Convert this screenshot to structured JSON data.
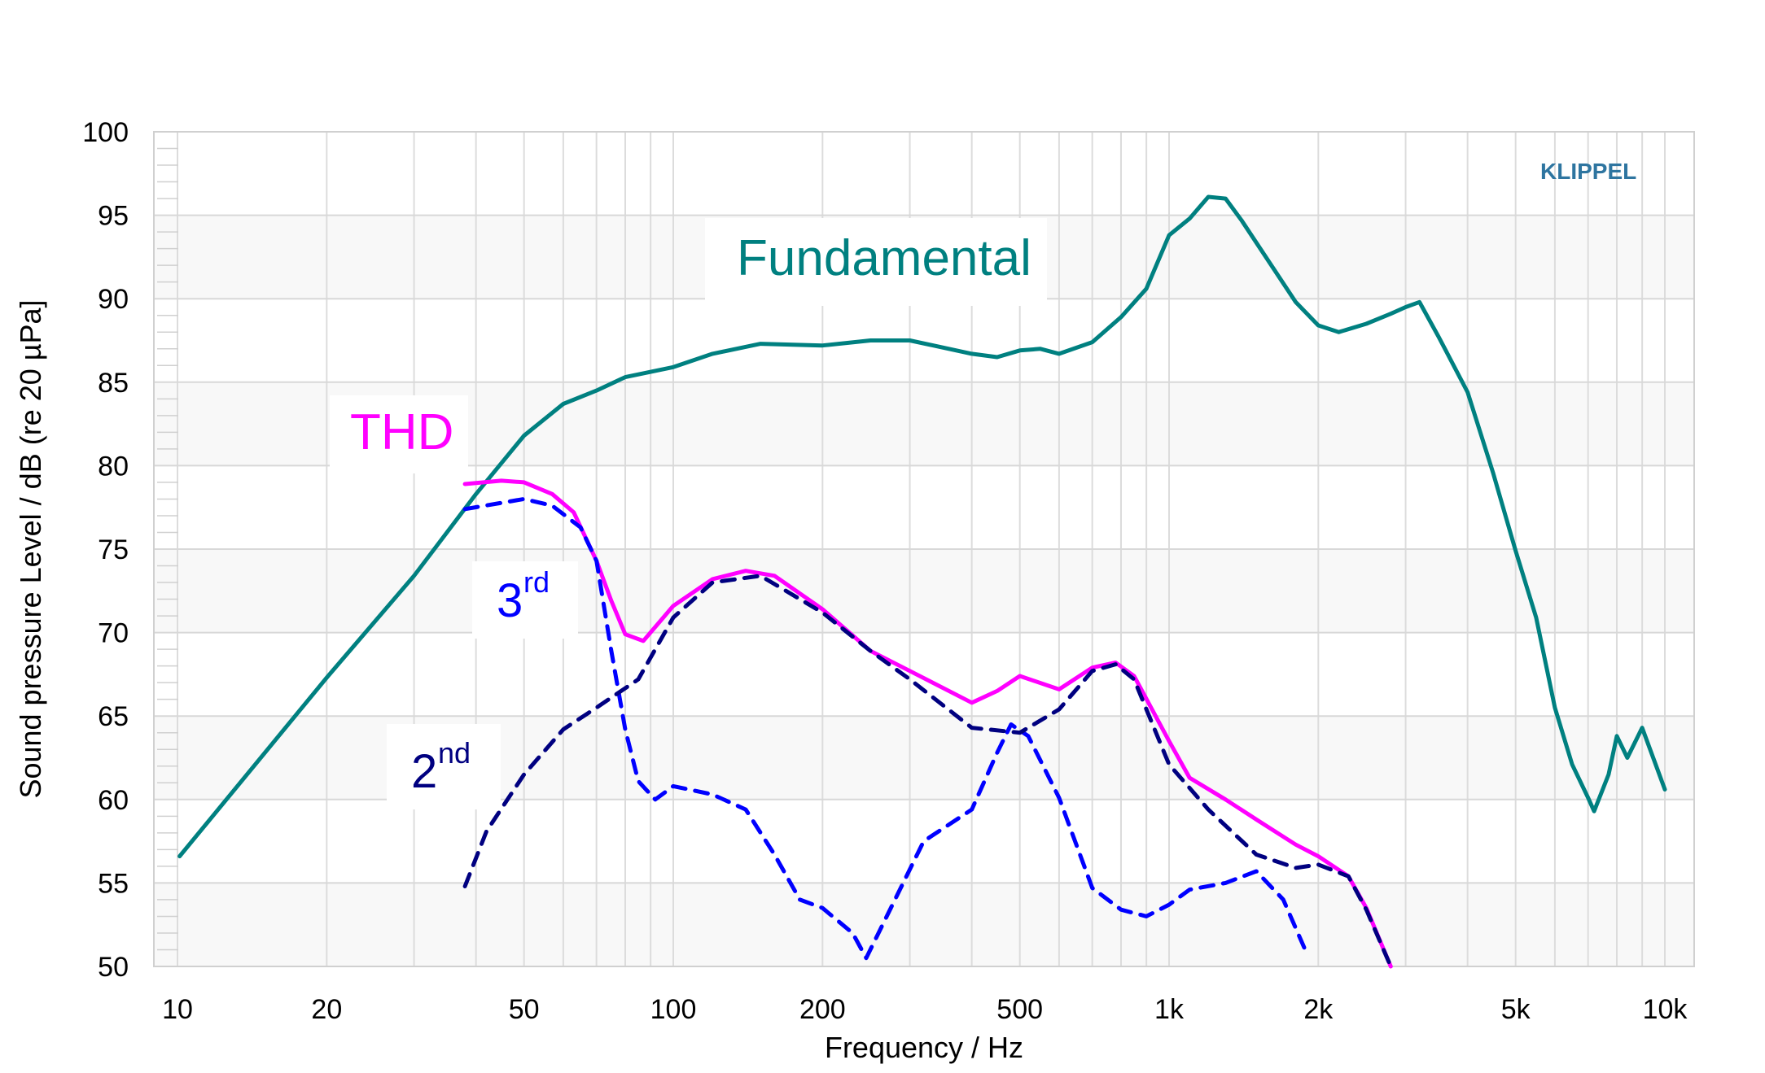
{
  "chart_data": {
    "type": "line",
    "title": "",
    "xlabel": "Frequency / Hz",
    "ylabel": "Sound pressure Level / dB (re 20 µPa]",
    "xscale": "log",
    "xlim": [
      10,
      10000
    ],
    "ylim": [
      50,
      100
    ],
    "grid": true,
    "xticks": [
      {
        "v": 10,
        "t": "10"
      },
      {
        "v": 20,
        "t": "20"
      },
      {
        "v": 50,
        "t": "50"
      },
      {
        "v": 100,
        "t": "100"
      },
      {
        "v": 200,
        "t": "200"
      },
      {
        "v": 500,
        "t": "500"
      },
      {
        "v": 1000,
        "t": "1k"
      },
      {
        "v": 2000,
        "t": "2k"
      },
      {
        "v": 5000,
        "t": "5k"
      },
      {
        "v": 10000,
        "t": "10k"
      }
    ],
    "yticks": [
      {
        "v": 100,
        "t": "100"
      },
      {
        "v": 95,
        "t": "95"
      },
      {
        "v": 90,
        "t": "90"
      },
      {
        "v": 85,
        "t": "85"
      },
      {
        "v": 80,
        "t": "80"
      },
      {
        "v": 75,
        "t": "75"
      },
      {
        "v": 70,
        "t": "70"
      },
      {
        "v": 65,
        "t": "65"
      },
      {
        "v": 60,
        "t": "60"
      },
      {
        "v": 55,
        "t": "55"
      },
      {
        "v": 50,
        "t": "50"
      }
    ],
    "watermark": "KLIPPEL",
    "series": [
      {
        "name": "Fundamental",
        "label": "Fundamental",
        "color": "#008080",
        "dash": false,
        "x": [
          10.1,
          20,
          30,
          40,
          50,
          60,
          70,
          80,
          100,
          120,
          150,
          200,
          250,
          300,
          400,
          450,
          500,
          550,
          600,
          700,
          800,
          900,
          1000,
          1100,
          1200,
          1300,
          1400,
          1600,
          1800,
          2000,
          2200,
          2500,
          2800,
          3000,
          3200,
          3500,
          4000,
          4500,
          5000,
          5500,
          6000,
          6500,
          7000,
          7200,
          7700,
          8000,
          8400,
          9000,
          10000
        ],
        "y": [
          56.6,
          67.3,
          73.4,
          78.3,
          81.8,
          83.7,
          84.5,
          85.3,
          85.9,
          86.7,
          87.3,
          87.2,
          87.5,
          87.5,
          86.7,
          86.5,
          86.9,
          87.0,
          86.7,
          87.4,
          88.9,
          90.6,
          93.8,
          94.8,
          96.1,
          96.0,
          94.7,
          92.1,
          89.8,
          88.4,
          88.0,
          88.5,
          89.1,
          89.5,
          89.8,
          87.7,
          84.4,
          79.6,
          74.9,
          70.9,
          65.5,
          62.1,
          60.1,
          59.3,
          61.5,
          63.8,
          62.5,
          64.3,
          60.6
        ]
      },
      {
        "name": "THD",
        "label": "THD",
        "color": "#ff00ff",
        "dash": false,
        "x": [
          38,
          45,
          50,
          57,
          63,
          70,
          75,
          80,
          87,
          100,
          120,
          140,
          160,
          200,
          250,
          300,
          400,
          450,
          500,
          600,
          700,
          780,
          850,
          1000,
          1100,
          1300,
          1500,
          1800,
          2000,
          2300,
          2500,
          2800
        ],
        "y": [
          78.9,
          79.1,
          79.0,
          78.3,
          77.2,
          74.3,
          71.9,
          69.9,
          69.5,
          71.6,
          73.2,
          73.7,
          73.4,
          71.4,
          68.9,
          67.7,
          65.8,
          66.5,
          67.4,
          66.6,
          67.9,
          68.2,
          67.4,
          63.5,
          61.3,
          60.0,
          58.8,
          57.3,
          56.6,
          55.4,
          53.5,
          50.0
        ]
      },
      {
        "name": "3rd",
        "label": "3",
        "label_sup": "rd",
        "color": "#0000ff",
        "dash": true,
        "x": [
          38,
          50,
          57,
          65,
          70,
          75,
          80,
          85,
          92,
          100,
          120,
          140,
          160,
          180,
          200,
          230,
          245,
          280,
          320,
          400,
          450,
          480,
          520,
          600,
          700,
          800,
          900,
          1000,
          1100,
          1300,
          1500,
          1700,
          1900
        ],
        "y": [
          77.4,
          78.0,
          77.6,
          76.3,
          74.3,
          68.9,
          64.2,
          61.1,
          60.0,
          60.8,
          60.3,
          59.4,
          56.7,
          54.0,
          53.5,
          52.0,
          50.5,
          54.0,
          57.5,
          59.4,
          62.8,
          64.5,
          63.8,
          60.1,
          54.7,
          53.4,
          53.0,
          53.7,
          54.6,
          55.0,
          55.7,
          54.0,
          50.7
        ]
      },
      {
        "name": "2nd",
        "label": "2",
        "label_sup": "nd",
        "color": "#000080",
        "dash": true,
        "x": [
          38,
          42,
          50,
          60,
          70,
          85,
          100,
          120,
          150,
          200,
          250,
          300,
          400,
          500,
          600,
          700,
          780,
          850,
          1000,
          1200,
          1500,
          1800,
          2000,
          2300,
          2500,
          2800
        ],
        "y": [
          54.8,
          58.1,
          61.5,
          64.2,
          65.5,
          67.2,
          70.9,
          73.0,
          73.4,
          71.2,
          68.9,
          67.2,
          64.3,
          64.0,
          65.4,
          67.7,
          68.1,
          67.2,
          62.1,
          59.4,
          56.7,
          55.9,
          56.1,
          55.4,
          53.4,
          50.0
        ]
      }
    ]
  }
}
